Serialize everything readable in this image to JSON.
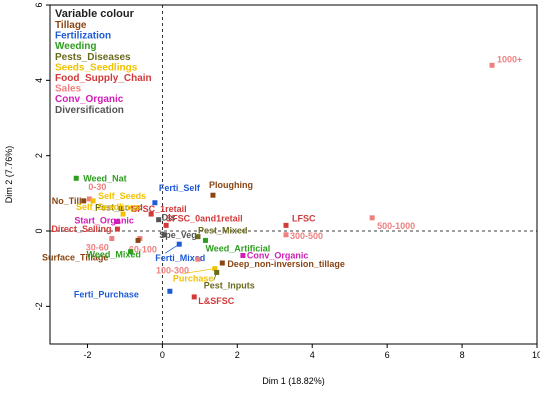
{
  "chart_data": {
    "type": "scatter",
    "xlabel": "Dim 1 (18.82%)",
    "ylabel": "Dim 2 (7.76%)",
    "xlim": [
      -3,
      10
    ],
    "ylim": [
      -3,
      6
    ],
    "xticks": [
      -2,
      0,
      2,
      4,
      6,
      8,
      10
    ],
    "yticks": [
      -2,
      0,
      2,
      4,
      6
    ],
    "reference_lines": {
      "x": 0,
      "y": 0,
      "style": "dashed"
    },
    "grid": false,
    "legend": {
      "title": "Variable colour",
      "placement": "top-left",
      "entries": [
        {
          "name": "Tillage",
          "color": "#8B4513"
        },
        {
          "name": "Fertilization",
          "color": "#1E5BD6"
        },
        {
          "name": "Weeding",
          "color": "#2E9E1F"
        },
        {
          "name": "Pests_Diseases",
          "color": "#6B6B1E"
        },
        {
          "name": "Seeds_Seedlings",
          "color": "#F2C200"
        },
        {
          "name": "Food_Supply_Chain",
          "color": "#D23A3A"
        },
        {
          "name": "Sales",
          "color": "#F08080"
        },
        {
          "name": "Conv_Organic",
          "color": "#D11EB5"
        },
        {
          "name": "Diversification",
          "color": "#555555"
        }
      ]
    },
    "points": [
      {
        "label": "1000+",
        "x": 8.8,
        "y": 4.4,
        "group": "Sales"
      },
      {
        "label": "Weed_Nat",
        "x": -2.3,
        "y": 1.4,
        "group": "Weeding"
      },
      {
        "label": "No_Till",
        "x": -2.1,
        "y": 0.8,
        "group": "Tillage"
      },
      {
        "label": "0-30",
        "x": -1.95,
        "y": 0.85,
        "group": "Sales"
      },
      {
        "label": "Self_Seeds",
        "x": -1.85,
        "y": 0.8,
        "group": "Seeds_Seedlings"
      },
      {
        "label": "Ferti_Self",
        "x": -0.2,
        "y": 0.75,
        "group": "Fertilization"
      },
      {
        "label": "Ploughing",
        "x": 1.35,
        "y": 0.95,
        "group": "Tillage"
      },
      {
        "label": "Pest_Local",
        "x": -1.1,
        "y": 0.6,
        "group": "Pests_Diseases"
      },
      {
        "label": "SFSC_1retail",
        "x": -0.3,
        "y": 0.45,
        "group": "Food_Supply_Chain"
      },
      {
        "label": "Self_Seedlings",
        "x": -1.05,
        "y": 0.45,
        "group": "Seeds_Seedlings"
      },
      {
        "label": "Dis",
        "x": -0.1,
        "y": 0.3,
        "group": "Diversification"
      },
      {
        "label": "Start_Organic",
        "x": -1.2,
        "y": 0.25,
        "group": "Conv_Organic"
      },
      {
        "label": "SFSC_0and1retail",
        "x": 0.1,
        "y": 0.15,
        "group": "Food_Supply_Chain"
      },
      {
        "label": "LFSC",
        "x": 3.3,
        "y": 0.15,
        "group": "Food_Supply_Chain"
      },
      {
        "label": "500-1000",
        "x": 5.6,
        "y": 0.35,
        "group": "Sales"
      },
      {
        "label": "Direct_Selling",
        "x": -1.2,
        "y": 0.05,
        "group": "Food_Supply_Chain"
      },
      {
        "label": "Spe_Veg",
        "x": 0.05,
        "y": -0.1,
        "group": "Diversification"
      },
      {
        "label": "Pest_Mixed",
        "x": 0.95,
        "y": -0.15,
        "group": "Pests_Diseases"
      },
      {
        "label": "300-500",
        "x": 3.3,
        "y": -0.1,
        "group": "Sales"
      },
      {
        "label": "30-60",
        "x": -1.35,
        "y": -0.2,
        "group": "Sales"
      },
      {
        "label": "60-100",
        "x": -0.6,
        "y": -0.2,
        "group": "Sales"
      },
      {
        "label": "Surface_Tillage",
        "x": -0.65,
        "y": -0.25,
        "group": "Tillage"
      },
      {
        "label": "Weed_Artificial",
        "x": 1.15,
        "y": -0.25,
        "group": "Weeding"
      },
      {
        "label": "Ferti_Mixed",
        "x": 0.45,
        "y": -0.35,
        "group": "Fertilization"
      },
      {
        "label": "Weed_Mixed",
        "x": -0.85,
        "y": -0.55,
        "group": "Weeding"
      },
      {
        "label": "100-300",
        "x": 0.95,
        "y": -0.75,
        "group": "Sales"
      },
      {
        "label": "Conv_Organic",
        "x": 2.15,
        "y": -0.65,
        "group": "Conv_Organic"
      },
      {
        "label": "Deep_non-inversion_tillage",
        "x": 1.6,
        "y": -0.85,
        "group": "Tillage"
      },
      {
        "label": "Purchase",
        "x": 1.4,
        "y": -1.0,
        "group": "Seeds_Seedlings"
      },
      {
        "label": "Pest_Inputs",
        "x": 1.45,
        "y": -1.1,
        "group": "Pests_Diseases"
      },
      {
        "label": "Ferti_Purchase",
        "x": 0.2,
        "y": -1.6,
        "group": "Fertilization"
      },
      {
        "label": "L&SFSC",
        "x": 0.85,
        "y": -1.75,
        "group": "Food_Supply_Chain"
      }
    ]
  }
}
